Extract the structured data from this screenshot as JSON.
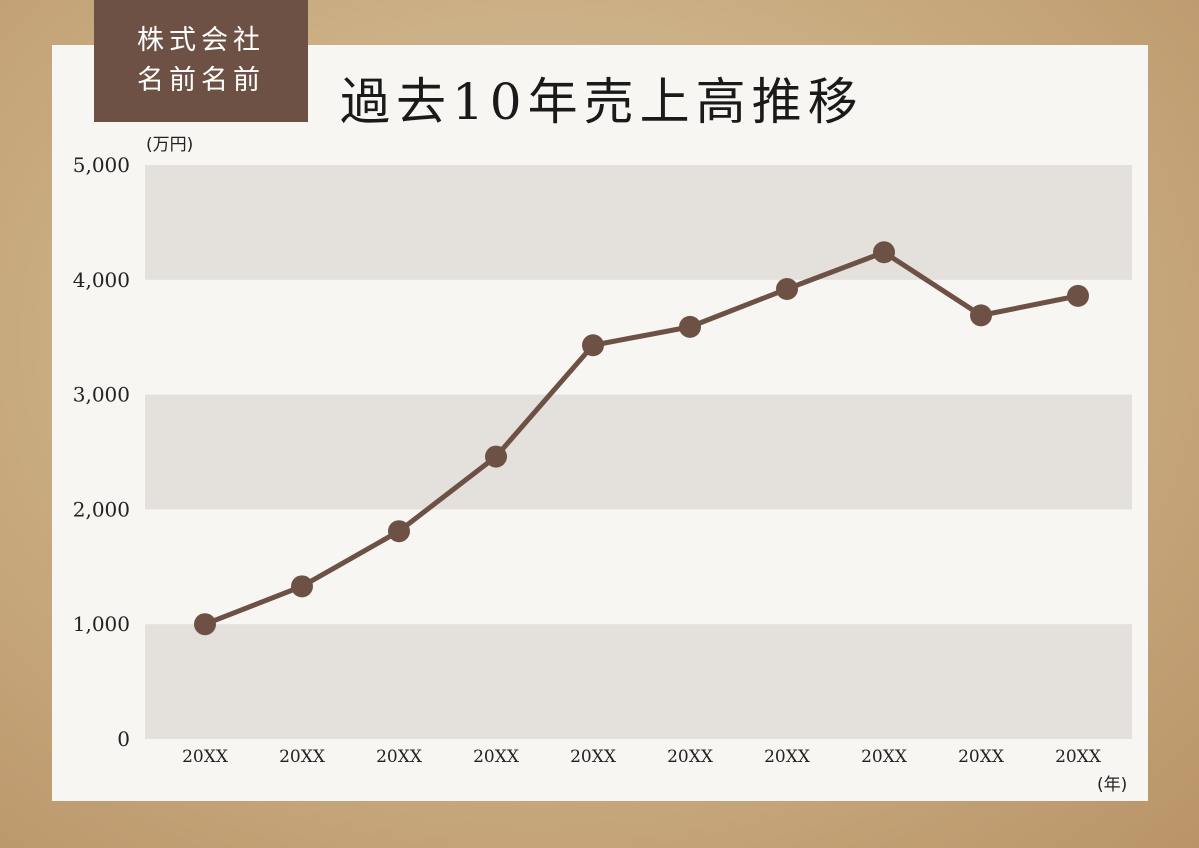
{
  "company": {
    "line1": "株式会社",
    "line2": "名前名前"
  },
  "title": "過去10年売上高推移",
  "colors": {
    "line": "#6e5145",
    "band": "#e4e0dc",
    "card": "#f8f6f3"
  },
  "chart_data": {
    "type": "line",
    "title": "過去10年売上高推移",
    "ylabel": "(万円)",
    "xlabel": "(年)",
    "ylim": [
      0,
      5000
    ],
    "yticks": [
      "0",
      "1,000",
      "2,000",
      "3,000",
      "4,000",
      "5,000"
    ],
    "categories": [
      "20XX",
      "20XX",
      "20XX",
      "20XX",
      "20XX",
      "20XX",
      "20XX",
      "20XX",
      "20XX",
      "20XX"
    ],
    "values": [
      1000,
      1330,
      1810,
      2460,
      3430,
      3590,
      3920,
      4240,
      3690,
      3860
    ],
    "grid": "alternating horizontal bands",
    "legend": "none"
  }
}
